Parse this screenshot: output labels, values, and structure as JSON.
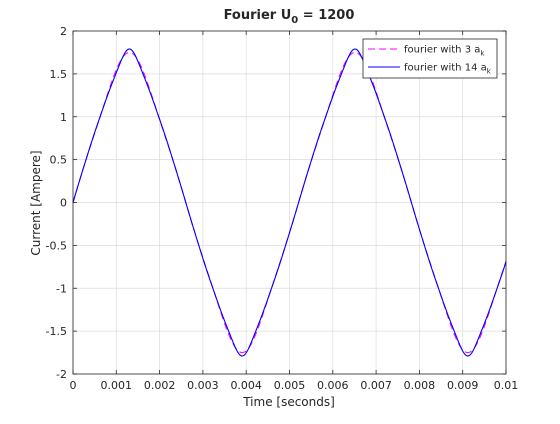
{
  "chart_data": {
    "type": "line",
    "title_main": "Fourier U",
    "title_sub": "0",
    "title_tail": " = 1200",
    "xlabel": "Time [seconds]",
    "ylabel": "Current [Ampere]",
    "xlim": [
      0,
      0.01
    ],
    "ylim": [
      -2,
      2
    ],
    "grid": true,
    "legend_position": "top-right",
    "xticks": [
      0,
      0.001,
      0.002,
      0.003,
      0.004,
      0.005,
      0.006,
      0.007,
      0.008,
      0.009,
      0.01
    ],
    "xtick_labels": [
      "0",
      "0.001",
      "0.002",
      "0.003",
      "0.004",
      "0.005",
      "0.006",
      "0.007",
      "0.008",
      "0.009",
      "0.01"
    ],
    "yticks": [
      -2,
      -1.5,
      -1,
      -0.5,
      0,
      0.5,
      1,
      1.5,
      2
    ],
    "ytick_labels": [
      "-2",
      "-1.5",
      "-1",
      "-0.5",
      "0",
      "0.5",
      "1",
      "1.5",
      "2"
    ],
    "period": 0.00521,
    "series": [
      {
        "legend_main": "fourier with 3 a",
        "legend_sub": "k",
        "color": "#ff00ff",
        "dash": "dashed",
        "peak": 1.75,
        "trough": -1.75,
        "harmonics": [
          [
            1,
            1.72,
            0.0
          ],
          [
            3,
            0.12,
            3.14159
          ],
          [
            5,
            0.03,
            0.0
          ]
        ]
      },
      {
        "legend_main": "fourier with 14 a",
        "legend_sub": "k",
        "color": "#0000ff",
        "dash": "solid",
        "peak": 1.79,
        "trough": -1.79,
        "harmonics": [
          [
            1,
            1.72,
            0.0
          ],
          [
            3,
            0.12,
            3.14159
          ],
          [
            5,
            0.045,
            0.0
          ],
          [
            7,
            0.018,
            3.14159
          ],
          [
            9,
            0.009,
            0.0
          ],
          [
            11,
            0.005,
            3.14159
          ],
          [
            13,
            0.003,
            0.0
          ]
        ]
      }
    ],
    "colors": {
      "axis": "#262626",
      "grid": "#dcdcdc",
      "background": "#ffffff"
    }
  }
}
